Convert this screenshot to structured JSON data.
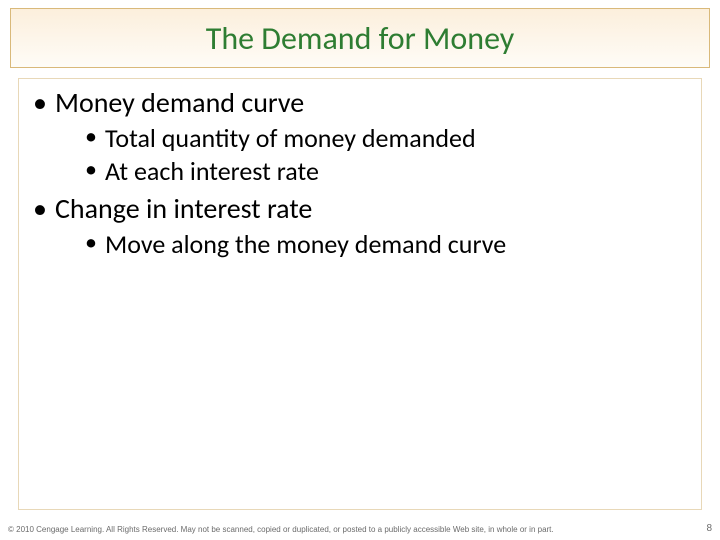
{
  "title": "The Demand for Money",
  "title_color": "#2e7d32",
  "title_fontsize": 32,
  "title_box_border": "#d9b97a",
  "title_box_bg_top": "#fcefdc",
  "title_box_bg_bottom": "#fefcf7",
  "body_border": "#e8d8b8",
  "body_fontsize_l1": 28,
  "body_fontsize_l2": 26,
  "text_color": "#000000",
  "bullets": {
    "item1": "Money demand curve",
    "item1_sub1": "Total quantity of money demanded",
    "item1_sub2": "At each interest rate",
    "item2": "Change in interest rate",
    "item2_sub1": "Move along the money demand curve"
  },
  "footer": "© 2010 Cengage Learning. All Rights Reserved. May not be scanned, copied or duplicated, or posted to a publicly accessible Web site, in whole or in part.",
  "page_number": "8",
  "footer_color": "#6b6b6b"
}
